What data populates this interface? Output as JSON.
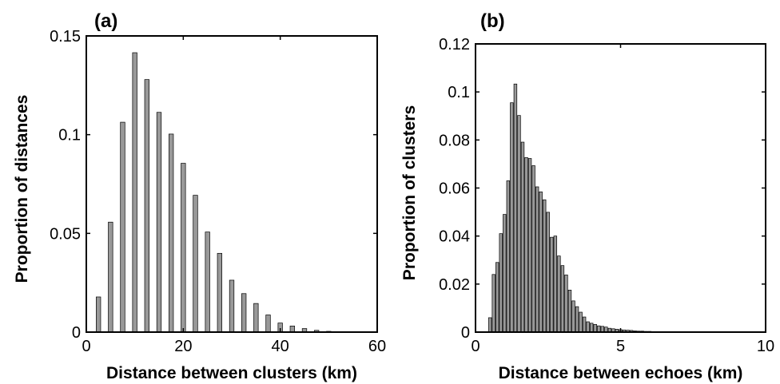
{
  "chart_data": [
    {
      "type": "bar",
      "panel": "(a)",
      "xlabel": "Distance between clusters (km)",
      "ylabel": "Proportion of distances",
      "xlim": [
        0,
        60
      ],
      "ylim": [
        0,
        0.15
      ],
      "xticks": [
        0,
        20,
        40,
        60
      ],
      "yticks": [
        0,
        0.05,
        0.1,
        0.15
      ],
      "xtick_labels": [
        "0",
        "20",
        "40",
        "60"
      ],
      "ytick_labels": [
        "0",
        "0.05",
        "0.1",
        "0.15"
      ],
      "bar_color": "#999999",
      "grid": false,
      "legend": "none",
      "x": [
        2.5,
        5,
        7.5,
        10,
        12.5,
        15,
        17.5,
        20,
        22.5,
        25,
        27.5,
        30,
        32.5,
        35,
        37.5,
        40,
        42.5,
        45,
        47.5,
        50,
        52.5
      ],
      "values": [
        0.0178,
        0.0557,
        0.1063,
        0.1415,
        0.1279,
        0.1113,
        0.1003,
        0.0855,
        0.0693,
        0.0507,
        0.0399,
        0.0263,
        0.0195,
        0.0145,
        0.0087,
        0.0046,
        0.0031,
        0.0018,
        0.0009,
        0.0004,
        0.0002
      ]
    },
    {
      "type": "bar",
      "panel": "(b)",
      "xlabel": "Distance between echoes (km)",
      "ylabel": "Proportion of clusters",
      "xlim": [
        0,
        10
      ],
      "ylim": [
        0,
        0.12
      ],
      "xticks": [
        0,
        5,
        10
      ],
      "yticks": [
        0,
        0.02,
        0.04,
        0.06,
        0.08,
        0.1,
        0.12
      ],
      "xtick_labels": [
        "0",
        "5",
        "10"
      ],
      "ytick_labels": [
        "0",
        "0.02",
        "0.04",
        "0.06",
        "0.08",
        "0.1",
        "0.12"
      ],
      "bar_color": "#999999",
      "grid": false,
      "legend": "none",
      "x": [
        0.5,
        0.625,
        0.75,
        0.875,
        1.0,
        1.125,
        1.25,
        1.375,
        1.5,
        1.625,
        1.75,
        1.875,
        2.0,
        2.125,
        2.25,
        2.375,
        2.5,
        2.625,
        2.75,
        2.875,
        3.0,
        3.125,
        3.25,
        3.375,
        3.5,
        3.625,
        3.75,
        3.875,
        4.0,
        4.125,
        4.25,
        4.375,
        4.5,
        4.625,
        4.75,
        4.875,
        5.0,
        5.125,
        5.25,
        5.375,
        5.5,
        5.625,
        5.75,
        5.875,
        6.0,
        6.125,
        6.25,
        6.375,
        6.5,
        6.625,
        6.75,
        6.875,
        7.0,
        7.125,
        7.25,
        7.375,
        7.5,
        7.625,
        7.75,
        7.875,
        8.0,
        8.125,
        8.25
      ],
      "values": [
        0.006,
        0.024,
        0.029,
        0.041,
        0.049,
        0.063,
        0.0955,
        0.1033,
        0.0902,
        0.0791,
        0.0727,
        0.0723,
        0.0693,
        0.0605,
        0.0584,
        0.0551,
        0.0499,
        0.0395,
        0.04,
        0.0317,
        0.0277,
        0.0238,
        0.0175,
        0.013,
        0.0106,
        0.0083,
        0.0063,
        0.0043,
        0.0037,
        0.0032,
        0.0026,
        0.0024,
        0.0021,
        0.0016,
        0.0014,
        0.0012,
        0.001,
        0.0009,
        0.0008,
        0.0007,
        0.0005,
        0.0004,
        0.0004,
        0.0003,
        0.0003,
        0.0002,
        0.0002,
        0.0002,
        0.0002,
        0.0001,
        0.0001,
        0.0001,
        0.0001,
        0.0001,
        0.0001,
        0.0001,
        0.0001,
        0.0001,
        0.0001,
        0.0001,
        0.0001,
        0.0001,
        0.0001
      ]
    }
  ]
}
